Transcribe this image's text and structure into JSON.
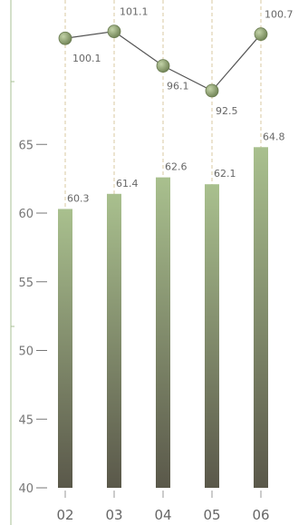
{
  "chart_data": {
    "type": "bar",
    "categories": [
      "02",
      "03",
      "04",
      "05",
      "06"
    ],
    "bar_series": {
      "values": [
        60.3,
        61.4,
        62.6,
        62.1,
        64.8
      ],
      "labels": [
        "60.3",
        "61.4",
        "62.6",
        "62.1",
        "64.8"
      ],
      "color_top": "#a9c08e",
      "color_bottom": "#5a584a"
    },
    "line_series": {
      "values": [
        100.1,
        101.1,
        96.1,
        92.5,
        100.7
      ],
      "labels": [
        "100.1",
        "101.1",
        "96.1",
        "92.5",
        "100.7"
      ],
      "color": "#8c9e6e",
      "line_color": "#555555"
    },
    "y_axis": {
      "ticks": [
        40,
        45,
        50,
        55,
        60,
        65
      ],
      "tick_labels": [
        "40",
        "45",
        "50",
        "55",
        "60",
        "65"
      ],
      "range": [
        40,
        66
      ]
    },
    "grid": false,
    "axis_color": "#a8c294",
    "guide_line_color": "#d8c9a0"
  }
}
